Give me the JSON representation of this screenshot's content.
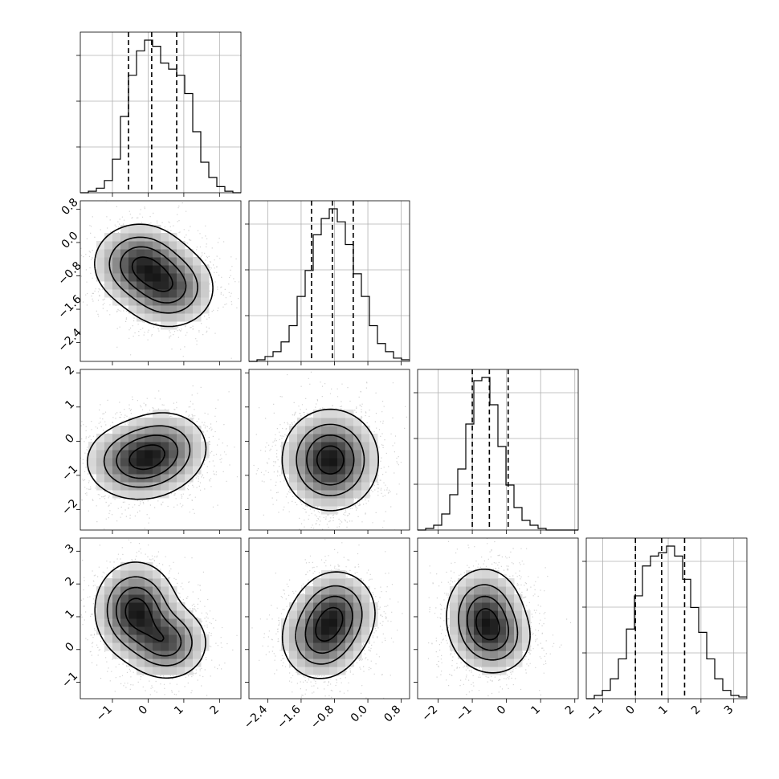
{
  "chart_data": {
    "type": "corner",
    "n_params": 4,
    "params": [
      {
        "index": 0,
        "range": [
          -1.9,
          2.6
        ],
        "ticks": [
          -1,
          0,
          1,
          2
        ],
        "tick_labels": [
          "−1",
          "0",
          "1",
          "2"
        ],
        "quantiles": [
          -0.55,
          0.1,
          0.8
        ]
      },
      {
        "index": 1,
        "range": [
          -2.85,
          1.0
        ],
        "ticks": [
          -2.4,
          -1.6,
          -0.8,
          0.0,
          0.8
        ],
        "tick_labels": [
          "−2.4",
          "−1.6",
          "−0.8",
          "0.0",
          "0.8"
        ],
        "quantiles": [
          -1.35,
          -0.85,
          -0.35
        ]
      },
      {
        "index": 2,
        "range": [
          -2.6,
          2.1
        ],
        "ticks": [
          -2,
          -1,
          0,
          1,
          2
        ],
        "tick_labels": [
          "−2",
          "−1",
          "0",
          "1",
          "2"
        ],
        "quantiles": [
          -1.0,
          -0.5,
          0.05
        ]
      },
      {
        "index": 3,
        "range": [
          -1.5,
          3.4
        ],
        "ticks": [
          -1,
          0,
          1,
          2,
          3
        ],
        "tick_labels": [
          "−1",
          "0",
          "1",
          "2",
          "3"
        ],
        "quantiles": [
          0.0,
          0.8,
          1.5
        ]
      }
    ],
    "histograms": [
      {
        "param": 0,
        "bin_start": -1.9,
        "bin_width": 0.225,
        "counts": [
          0,
          1,
          3,
          8,
          22,
          50,
          77,
          93,
          100,
          96,
          85,
          81,
          77,
          65,
          40,
          20,
          10,
          4,
          1,
          0
        ]
      },
      {
        "param": 1,
        "bin_start": -2.85,
        "bin_width": 0.1925,
        "counts": [
          0,
          1,
          3,
          6,
          12,
          22,
          40,
          56,
          78,
          88,
          94,
          86,
          72,
          54,
          40,
          22,
          11,
          6,
          2,
          1
        ]
      },
      {
        "param": 2,
        "bin_start": -2.6,
        "bin_width": 0.235,
        "counts": [
          0,
          1,
          3,
          10,
          22,
          38,
          66,
          93,
          95,
          78,
          52,
          28,
          14,
          6,
          3,
          1,
          0,
          0,
          0,
          0
        ]
      },
      {
        "param": 3,
        "bin_start": -1.5,
        "bin_width": 0.245,
        "counts": [
          0,
          2,
          5,
          12,
          24,
          42,
          62,
          80,
          86,
          88,
          92,
          86,
          72,
          55,
          40,
          24,
          12,
          5,
          2,
          1
        ]
      }
    ],
    "pairs": [
      {
        "x_param": 0,
        "y_param": 1,
        "modes": [
          {
            "x": -0.25,
            "y": -0.5,
            "sx": 0.4,
            "sy": 0.3,
            "w": 1.0
          },
          {
            "x": 0.6,
            "y": -1.1,
            "sx": 0.4,
            "sy": 0.3,
            "w": 0.9
          }
        ]
      },
      {
        "x_param": 0,
        "y_param": 2,
        "modes": [
          {
            "x": -0.3,
            "y": -0.6,
            "sx": 0.45,
            "sy": 0.35,
            "w": 1.0
          },
          {
            "x": 0.5,
            "y": -0.15,
            "sx": 0.4,
            "sy": 0.35,
            "w": 0.6
          }
        ]
      },
      {
        "x_param": 1,
        "y_param": 2,
        "modes": [
          {
            "x": -0.9,
            "y": -0.55,
            "sx": 0.35,
            "sy": 0.45,
            "w": 1.0
          }
        ]
      },
      {
        "x_param": 0,
        "y_param": 3,
        "modes": [
          {
            "x": -0.35,
            "y": 1.2,
            "sx": 0.35,
            "sy": 0.45,
            "w": 1.0
          },
          {
            "x": 0.55,
            "y": 0.2,
            "sx": 0.35,
            "sy": 0.35,
            "w": 0.75
          }
        ]
      },
      {
        "x_param": 1,
        "y_param": 3,
        "modes": [
          {
            "x": -1.15,
            "y": 0.3,
            "sx": 0.3,
            "sy": 0.4,
            "w": 0.9
          },
          {
            "x": -0.75,
            "y": 1.15,
            "sx": 0.3,
            "sy": 0.4,
            "w": 1.0
          }
        ]
      },
      {
        "x_param": 2,
        "y_param": 3,
        "modes": [
          {
            "x": -0.65,
            "y": 1.05,
            "sx": 0.35,
            "sy": 0.45,
            "w": 1.0
          },
          {
            "x": -0.3,
            "y": 0.3,
            "sx": 0.35,
            "sy": 0.35,
            "w": 0.55
          }
        ]
      }
    ],
    "grid": true,
    "point_color": "#7f7f7f",
    "contour_color": "#000000",
    "density_colormap": "greys",
    "title": "",
    "xlabel": "",
    "ylabel": ""
  }
}
